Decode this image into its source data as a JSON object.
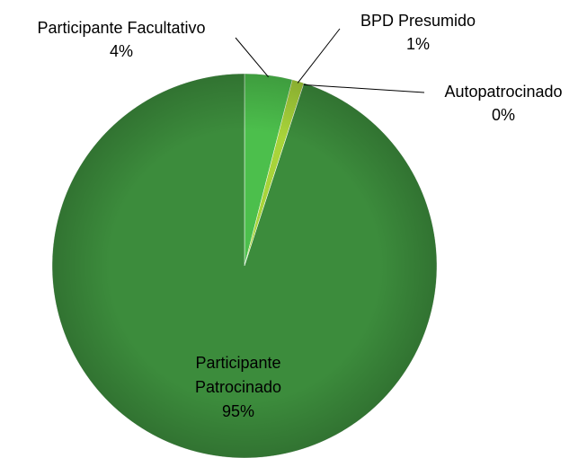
{
  "chart_data": {
    "type": "pie",
    "categories": [
      "Participante Facultativo",
      "BPD Presumido",
      "Autopatrocinado",
      "Participante Patrocinado"
    ],
    "values": [
      4,
      1,
      0,
      95
    ],
    "value_labels": [
      "4%",
      "1%",
      "0%",
      "95%"
    ],
    "colors": [
      "#4cbf4c",
      "#a8d43a",
      "#c9e38c",
      "#3c8c3c"
    ]
  }
}
